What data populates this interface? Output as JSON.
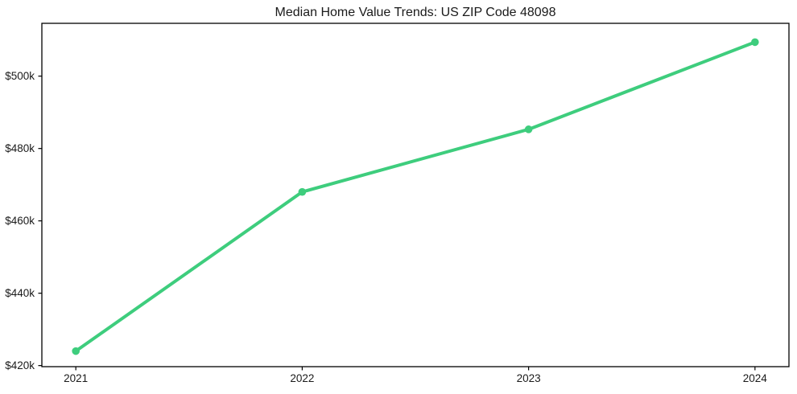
{
  "figure": {
    "background": "#ffffff"
  },
  "chart_data": {
    "type": "line",
    "title": "Median Home Value Trends: US ZIP Code 48098",
    "categories": [
      "2021",
      "2022",
      "2023",
      "2024"
    ],
    "x": [
      2021,
      2022,
      2023,
      2024
    ],
    "values": [
      424000,
      468000,
      485300,
      509400
    ],
    "xlabel": "",
    "ylabel": "",
    "y_ticks": [
      420000,
      440000,
      460000,
      480000,
      500000
    ],
    "y_tick_labels": [
      "$420k",
      "$440k",
      "$460k",
      "$480k",
      "$500k"
    ],
    "ylim": [
      419700,
      514600
    ],
    "xlim": [
      2020.85,
      2024.15
    ],
    "grid": false,
    "legend": false,
    "line_color": "#3ecd7d",
    "marker": "circle",
    "marker_color": "#3ecd7d",
    "text_color": "#1a1a1a",
    "spine_color": "#000000"
  }
}
